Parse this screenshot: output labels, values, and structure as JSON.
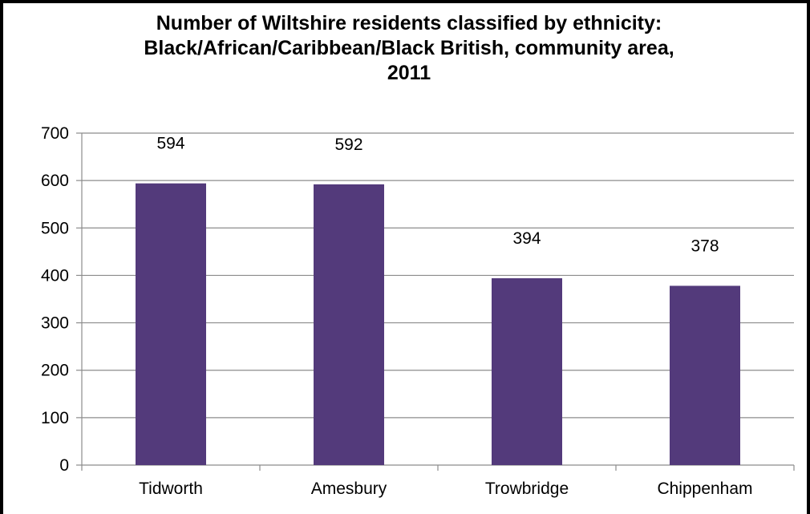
{
  "chart_data": {
    "type": "bar",
    "title_lines": [
      "Number of Wiltshire residents classified by ethnicity:",
      "Black/African/Caribbean/Black British, community area,",
      "2011"
    ],
    "categories": [
      "Tidworth",
      "Amesbury",
      "Trowbridge",
      "Chippenham"
    ],
    "values": [
      594,
      592,
      394,
      378
    ],
    "data_labels": [
      "594",
      "592",
      "394",
      "378"
    ],
    "ylim": [
      0,
      700
    ],
    "yticks": [
      0,
      100,
      200,
      300,
      400,
      500,
      600,
      700
    ],
    "ytick_labels": [
      "0",
      "100",
      "200",
      "300",
      "400",
      "500",
      "600",
      "700"
    ],
    "grid": true,
    "legend": "none",
    "bar_color": "#533a7b"
  }
}
